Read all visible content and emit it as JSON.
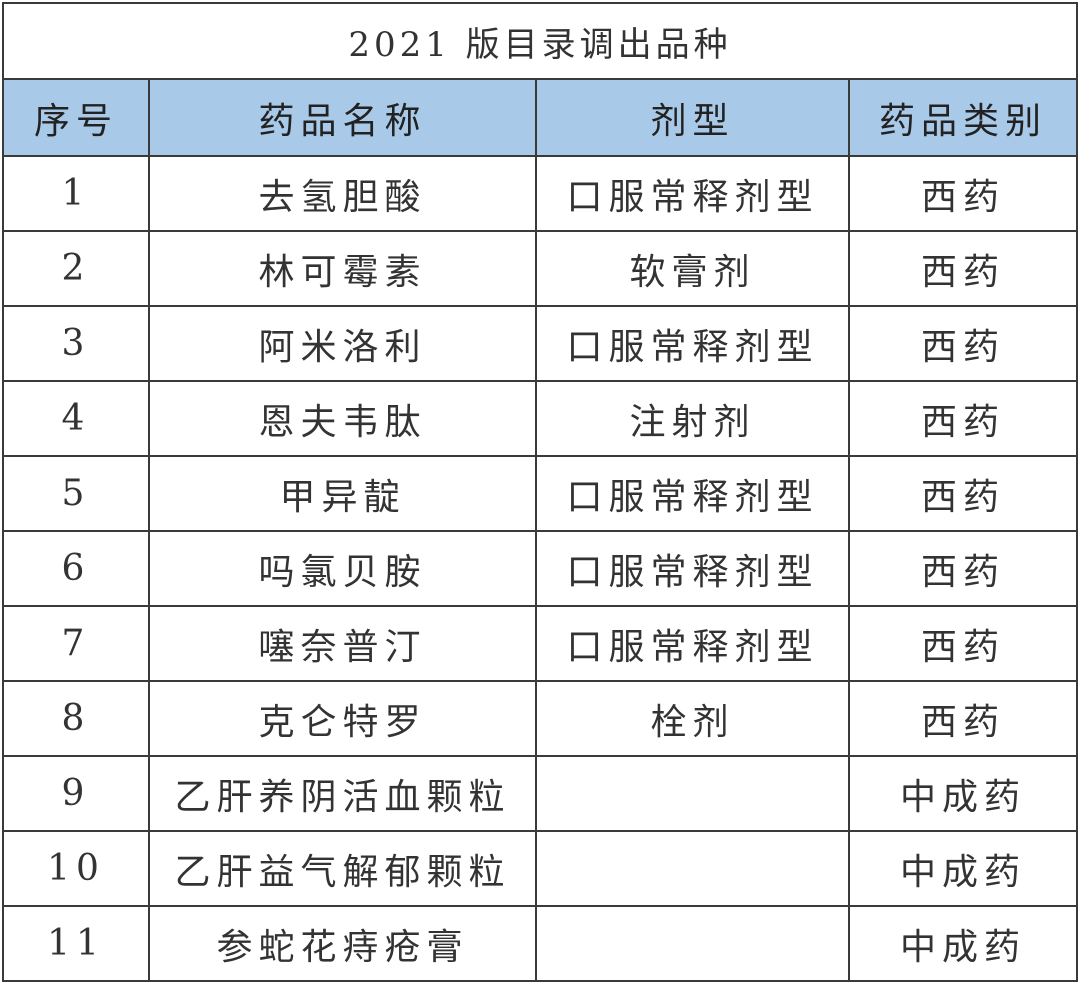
{
  "title": "2021 版目录调出品种",
  "header_color": "#a9c9e8",
  "columns": [
    "序号",
    "药品名称",
    "剂型",
    "药品类别"
  ],
  "rows": [
    [
      "1",
      "去氢胆酸",
      "口服常释剂型",
      "西药"
    ],
    [
      "2",
      "林可霉素",
      "软膏剂",
      "西药"
    ],
    [
      "3",
      "阿米洛利",
      "口服常释剂型",
      "西药"
    ],
    [
      "4",
      "恩夫韦肽",
      "注射剂",
      "西药"
    ],
    [
      "5",
      "甲异靛",
      "口服常释剂型",
      "西药"
    ],
    [
      "6",
      "吗氯贝胺",
      "口服常释剂型",
      "西药"
    ],
    [
      "7",
      "噻奈普汀",
      "口服常释剂型",
      "西药"
    ],
    [
      "8",
      "克仑特罗",
      "栓剂",
      "西药"
    ],
    [
      "9",
      "乙肝养阴活血颗粒",
      "",
      "中成药"
    ],
    [
      "10",
      "乙肝益气解郁颗粒",
      "",
      "中成药"
    ],
    [
      "11",
      "参蛇花痔疮膏",
      "",
      "中成药"
    ]
  ]
}
